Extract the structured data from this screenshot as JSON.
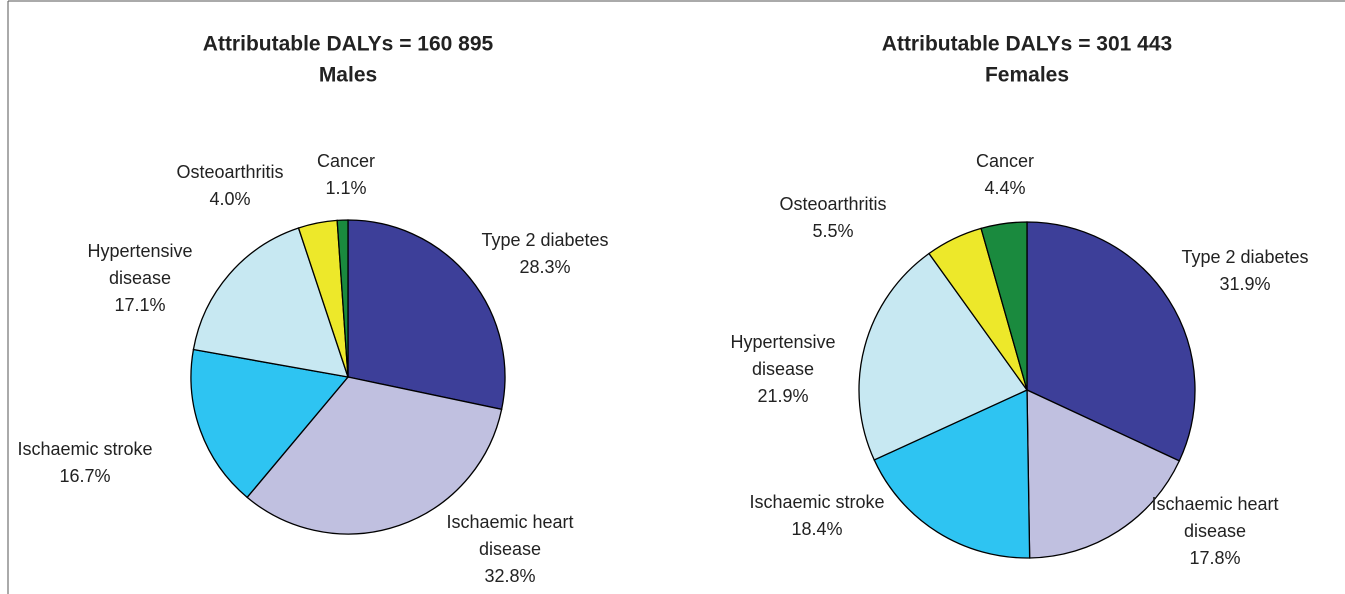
{
  "chart_data": [
    {
      "type": "pie",
      "title": "Attributable DALYs = 160 895",
      "subtitle": "Males",
      "categories": [
        "Type 2 diabetes",
        "Ischaemic heart disease",
        "Ischaemic stroke",
        "Hypertensive disease",
        "Osteoarthritis",
        "Cancer"
      ],
      "values": [
        28.3,
        32.8,
        16.7,
        17.1,
        4.0,
        1.1
      ],
      "value_labels": [
        "28.3%",
        "32.8%",
        "16.7%",
        "17.1%",
        "4.0%",
        "1.1%"
      ],
      "colors": [
        "#3d3f99",
        "#c0c0e0",
        "#2ec4f2",
        "#c7e8f2",
        "#ede82a",
        "#1a8a3e"
      ]
    },
    {
      "type": "pie",
      "title": "Attributable DALYs = 301 443",
      "subtitle": "Females",
      "categories": [
        "Type 2 diabetes",
        "Ischaemic heart disease",
        "Ischaemic stroke",
        "Hypertensive disease",
        "Osteoarthritis",
        "Cancer"
      ],
      "values": [
        31.9,
        17.8,
        18.4,
        21.9,
        5.5,
        4.4
      ],
      "value_labels": [
        "31.9%",
        "17.8%",
        "18.4%",
        "21.9%",
        "5.5%",
        "4.4%"
      ],
      "colors": [
        "#3d3f99",
        "#c0c0e0",
        "#2ec4f2",
        "#c7e8f2",
        "#ede82a",
        "#1a8a3e"
      ]
    }
  ]
}
